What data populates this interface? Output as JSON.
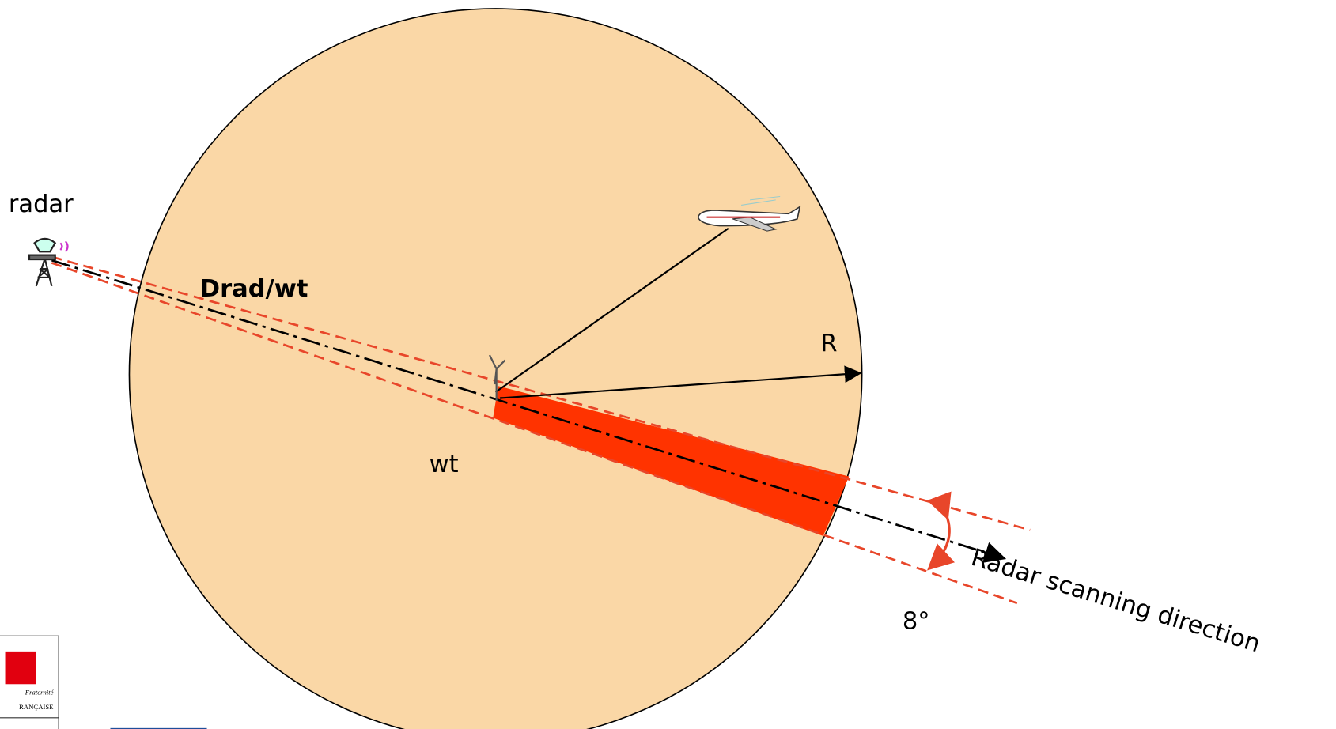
{
  "labels": {
    "radar": "radar",
    "distance": "Drad/wt",
    "radius": "R",
    "turbine": "wt",
    "angle": "8°",
    "direction": "Radar scanning direction"
  },
  "logo": {
    "motto": "Fraternité",
    "country": "RANÇAISE"
  }
}
